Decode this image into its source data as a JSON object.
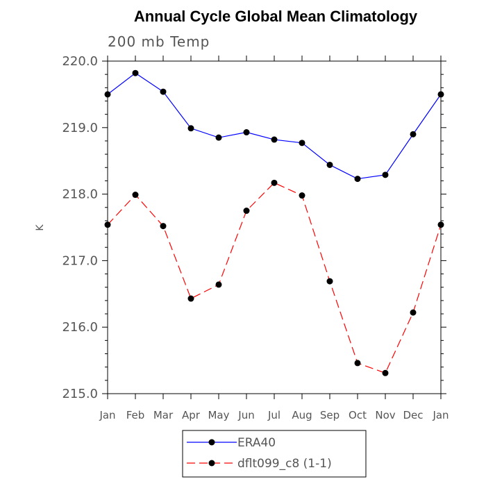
{
  "chart_data": {
    "type": "line",
    "title": "Annual Cycle Global Mean Climatology",
    "subtitle": "200 mb Temp",
    "xlabel": "",
    "ylabel": "K",
    "categories": [
      "Jan",
      "Feb",
      "Mar",
      "Apr",
      "May",
      "Jun",
      "Jul",
      "Aug",
      "Sep",
      "Oct",
      "Nov",
      "Dec",
      "Jan"
    ],
    "ylim": [
      215.0,
      220.0
    ],
    "yticks": [
      "215.0",
      "216.0",
      "217.0",
      "218.0",
      "219.0",
      "220.0"
    ],
    "series": [
      {
        "name": "ERA40",
        "color": "#0000ff",
        "dash": "solid",
        "values": [
          219.5,
          219.82,
          219.54,
          218.99,
          218.85,
          218.93,
          218.82,
          218.77,
          218.44,
          218.23,
          218.29,
          218.9,
          219.5
        ]
      },
      {
        "name": "dflt099_c8 (1-1)",
        "color": "#ff0000",
        "dash": "dashed",
        "values": [
          217.54,
          217.99,
          217.52,
          216.43,
          216.64,
          217.75,
          218.17,
          217.98,
          216.69,
          215.46,
          215.31,
          216.22,
          217.54
        ]
      }
    ],
    "legend_position": "bottom-center"
  }
}
